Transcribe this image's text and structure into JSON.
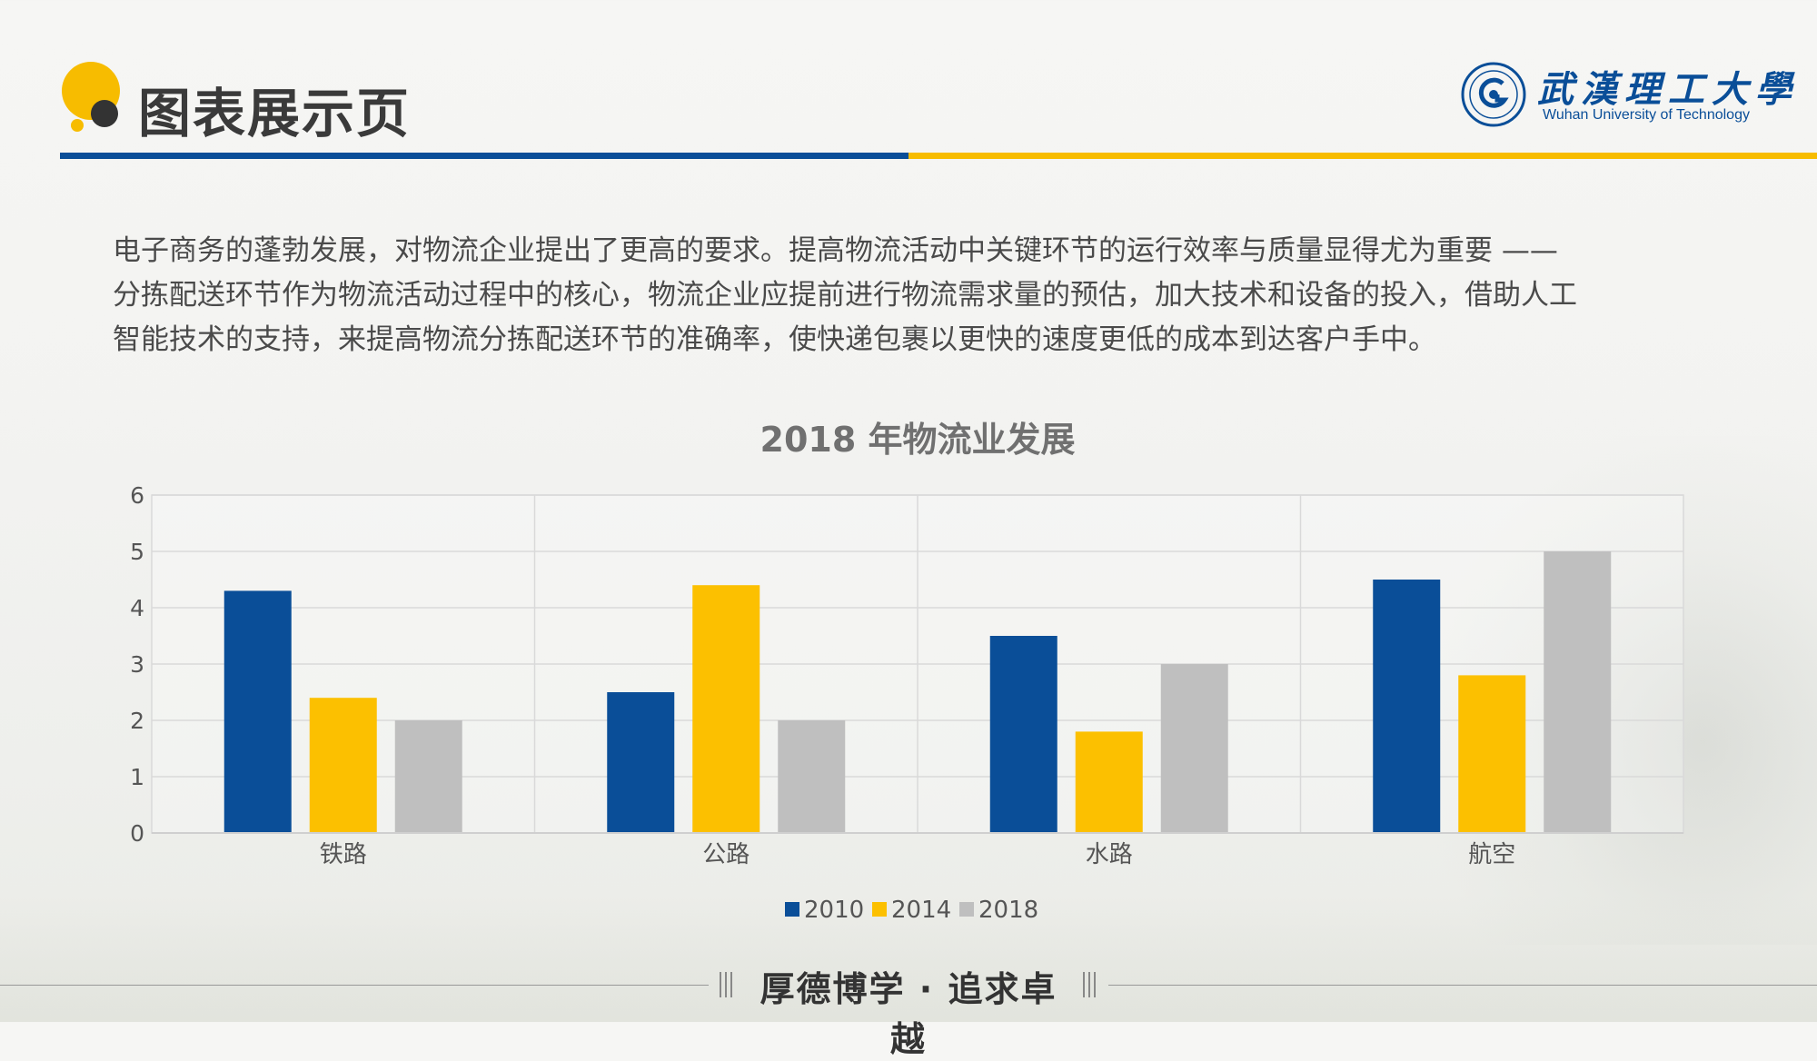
{
  "header": {
    "title": "图表展示页",
    "logo_cn": "武漢理工大學",
    "logo_en": "Wuhan University of Technology"
  },
  "intro": {
    "lines": [
      "电子商务的蓬勃发展，对物流企业提出了更高的要求。提高物流活动中关键环节的运行效率与质量显得尤为重要 ——",
      "分拣配送环节作为物流活动过程中的核心，物流企业应提前进行物流需求量的预估，加大技术和设备的投入，借助人工",
      "智能技术的支持，来提高物流分拣配送环节的准确率，使快递包裹以更快的速度更低的成本到达客户手中。"
    ]
  },
  "chart_data": {
    "type": "bar",
    "title": "2018 年物流业发展",
    "categories": [
      "铁路",
      "公路",
      "水路",
      "航空"
    ],
    "series": [
      {
        "name": "2010",
        "values": [
          4.3,
          2.5,
          3.5,
          4.5
        ],
        "color": "#0a4e98"
      },
      {
        "name": "2014",
        "values": [
          2.4,
          4.4,
          1.8,
          2.8
        ],
        "color": "#fcc000"
      },
      {
        "name": "2018",
        "values": [
          2.0,
          2.0,
          3.0,
          5.0
        ],
        "color": "#bfbfbf"
      }
    ],
    "ylim": [
      0,
      6
    ],
    "yticks": [
      "0",
      "1",
      "2",
      "3",
      "4",
      "5",
      "6"
    ],
    "grid": true,
    "legend": "bottom"
  },
  "footer": {
    "motto": "厚德博学 · 追求卓越"
  },
  "colors": {
    "brand_blue": "#0a4e98",
    "brand_yellow": "#f7bc00"
  }
}
